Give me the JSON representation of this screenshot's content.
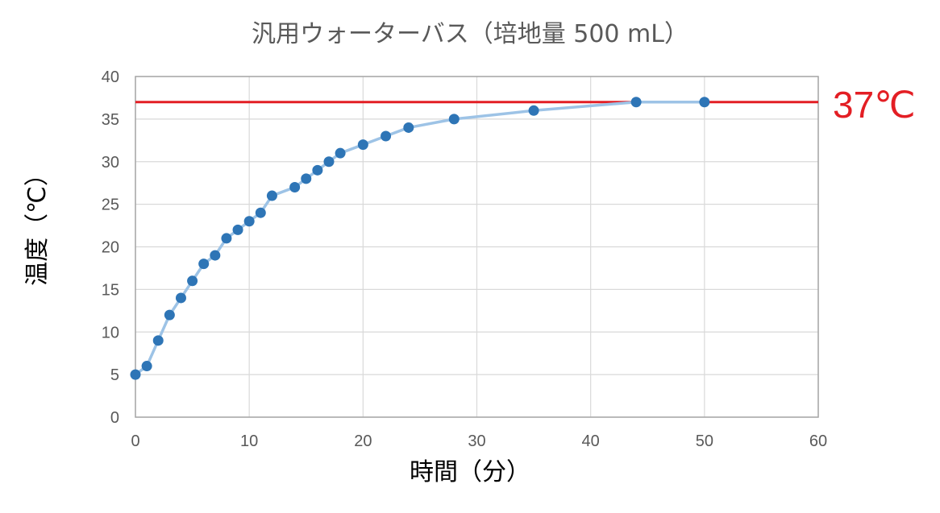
{
  "chart_data": {
    "type": "line",
    "title": "汎用ウォーターバス（培地量 500 mL）",
    "xlabel": "時間（分）",
    "ylabel": "温度（℃）",
    "xlim": [
      0,
      60
    ],
    "ylim": [
      0,
      40
    ],
    "xticks": [
      "0",
      "10",
      "20",
      "30",
      "40",
      "50",
      "60"
    ],
    "yticks": [
      "0",
      "5",
      "10",
      "15",
      "20",
      "25",
      "30",
      "35",
      "40"
    ],
    "grid": true,
    "series": [
      {
        "x": [
          0,
          1,
          2,
          3,
          4,
          5,
          6,
          7,
          8,
          9,
          10,
          11,
          12,
          14,
          15,
          16,
          17,
          18,
          20,
          22,
          24,
          28,
          35,
          44,
          50
        ],
        "y": [
          5,
          6,
          9,
          12,
          14,
          16,
          18,
          19,
          21,
          22,
          23,
          24,
          26,
          27,
          28,
          29,
          30,
          31,
          32,
          33,
          34,
          35,
          36,
          37,
          37
        ],
        "line_color": "#9dc3e6",
        "marker_color": "#2e75b6"
      }
    ],
    "reference_line": {
      "y": 37,
      "label": "37℃",
      "color": "#e31e24"
    }
  }
}
